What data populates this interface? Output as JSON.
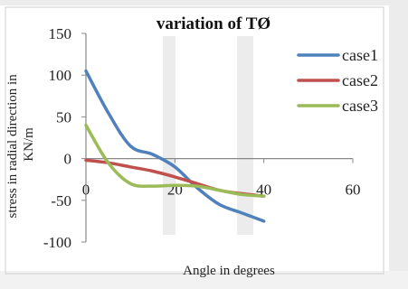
{
  "chart_data": {
    "type": "line",
    "title": "variation of TØ",
    "xlabel": "Angle in degrees",
    "ylabel": "stress in radial direction in KN/m",
    "xlim": [
      0,
      60
    ],
    "ylim": [
      -100,
      150
    ],
    "x_ticks": [
      "0",
      "20",
      "40",
      "60"
    ],
    "y_ticks": [
      "150",
      "100",
      "50",
      "0",
      "-50",
      "-100"
    ],
    "x_tick_values": [
      0,
      20,
      40,
      60
    ],
    "y_tick_values": [
      150,
      100,
      50,
      0,
      -50,
      -100
    ],
    "grid": false,
    "legend_position": "right",
    "series": [
      {
        "name": "case1",
        "color": "#4f81bd",
        "x": [
          0,
          5,
          10,
          15,
          20,
          25,
          30,
          35,
          40
        ],
        "y": [
          105,
          55,
          15,
          5,
          -10,
          -35,
          -55,
          -65,
          -75
        ]
      },
      {
        "name": "case2",
        "color": "#c0504d",
        "x": [
          0,
          5,
          10,
          15,
          20,
          25,
          30,
          35,
          40
        ],
        "y": [
          -2,
          -5,
          -10,
          -15,
          -22,
          -30,
          -38,
          -42,
          -45
        ]
      },
      {
        "name": "case3",
        "color": "#9bbb59",
        "x": [
          0,
          5,
          10,
          15,
          20,
          25,
          30,
          35,
          40
        ],
        "y": [
          40,
          -5,
          -30,
          -33,
          -32,
          -33,
          -38,
          -43,
          -45
        ]
      }
    ]
  }
}
